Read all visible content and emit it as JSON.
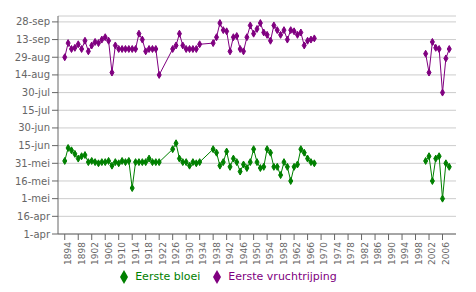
{
  "chart_data": {
    "type": "line",
    "x": [
      1894,
      1895,
      1896,
      1897,
      1898,
      1899,
      1900,
      1901,
      1902,
      1903,
      1904,
      1905,
      1906,
      1907,
      1908,
      1909,
      1910,
      1911,
      1912,
      1913,
      1914,
      1915,
      1916,
      1917,
      1918,
      1919,
      1920,
      1921,
      1922,
      1926,
      1927,
      1928,
      1929,
      1930,
      1931,
      1932,
      1933,
      1934,
      1938,
      1939,
      1940,
      1941,
      1942,
      1943,
      1944,
      1945,
      1946,
      1947,
      1948,
      1949,
      1950,
      1951,
      1952,
      1953,
      1954,
      1955,
      1956,
      1957,
      1958,
      1959,
      1960,
      1961,
      1962,
      1963,
      1964,
      1965,
      1966,
      1967,
      1968,
      null,
      2001,
      2002,
      2003,
      2004,
      2005,
      2006,
      2007,
      2008
    ],
    "series": [
      {
        "name": "Eerste bloei",
        "color": "#008000",
        "marker": "diamond",
        "values": [
          153,
          164,
          162,
          159,
          155,
          157,
          158,
          152,
          153,
          152,
          151,
          152,
          152,
          153,
          149,
          152,
          151,
          153,
          152,
          153,
          130,
          152,
          152,
          152,
          152,
          155,
          152,
          152,
          152,
          163,
          168,
          155,
          152,
          152,
          149,
          152,
          151,
          152,
          163,
          160,
          149,
          152,
          161,
          148,
          155,
          152,
          144,
          150,
          147,
          152,
          163,
          152,
          147,
          148,
          163,
          160,
          148,
          148,
          141,
          152,
          148,
          136,
          148,
          150,
          163,
          160,
          155,
          152,
          151,
          null,
          153,
          157,
          136,
          155,
          157,
          121,
          151,
          148
        ]
      },
      {
        "name": "Eerste vruchtrijping",
        "color": "#800080",
        "marker": "diamond",
        "values": [
          241,
          253,
          248,
          249,
          252,
          248,
          255,
          246,
          251,
          254,
          253,
          256,
          258,
          255,
          228,
          251,
          248,
          248,
          248,
          248,
          248,
          248,
          261,
          256,
          246,
          248,
          248,
          248,
          226,
          248,
          251,
          261,
          251,
          248,
          248,
          248,
          248,
          252,
          253,
          258,
          270,
          264,
          263,
          246,
          258,
          259,
          248,
          246,
          258,
          268,
          261,
          265,
          270,
          262,
          260,
          255,
          268,
          264,
          260,
          264,
          256,
          264,
          263,
          260,
          262,
          251,
          255,
          256,
          257,
          null,
          244,
          228,
          254,
          249,
          248,
          211,
          240,
          248
        ]
      }
    ],
    "xlim": [
      1892,
      2010
    ],
    "xticks": [
      1894,
      1898,
      1902,
      1906,
      1910,
      1914,
      1918,
      1922,
      1926,
      1930,
      1934,
      1938,
      1942,
      1946,
      1950,
      1954,
      1958,
      1962,
      1966,
      1970,
      1974,
      1978,
      1982,
      1986,
      1990,
      1994,
      1998,
      2002,
      2006
    ],
    "ylim": [
      91,
      276
    ],
    "yticks": [
      {
        "value": 91,
        "label": "1-apr"
      },
      {
        "value": 106,
        "label": "16-apr"
      },
      {
        "value": 121,
        "label": "1-mei"
      },
      {
        "value": 136,
        "label": "16-mei"
      },
      {
        "value": 151,
        "label": "31-mei"
      },
      {
        "value": 166,
        "label": "15-jun"
      },
      {
        "value": 181,
        "label": "30-jun"
      },
      {
        "value": 196,
        "label": "15-jul"
      },
      {
        "value": 211,
        "label": "30-jul"
      },
      {
        "value": 226,
        "label": "14-aug"
      },
      {
        "value": 241,
        "label": "29-aug"
      },
      {
        "value": 256,
        "label": "13-sep"
      },
      {
        "value": 271,
        "label": "28-sep"
      }
    ],
    "grid": true,
    "legend": "bottom"
  }
}
